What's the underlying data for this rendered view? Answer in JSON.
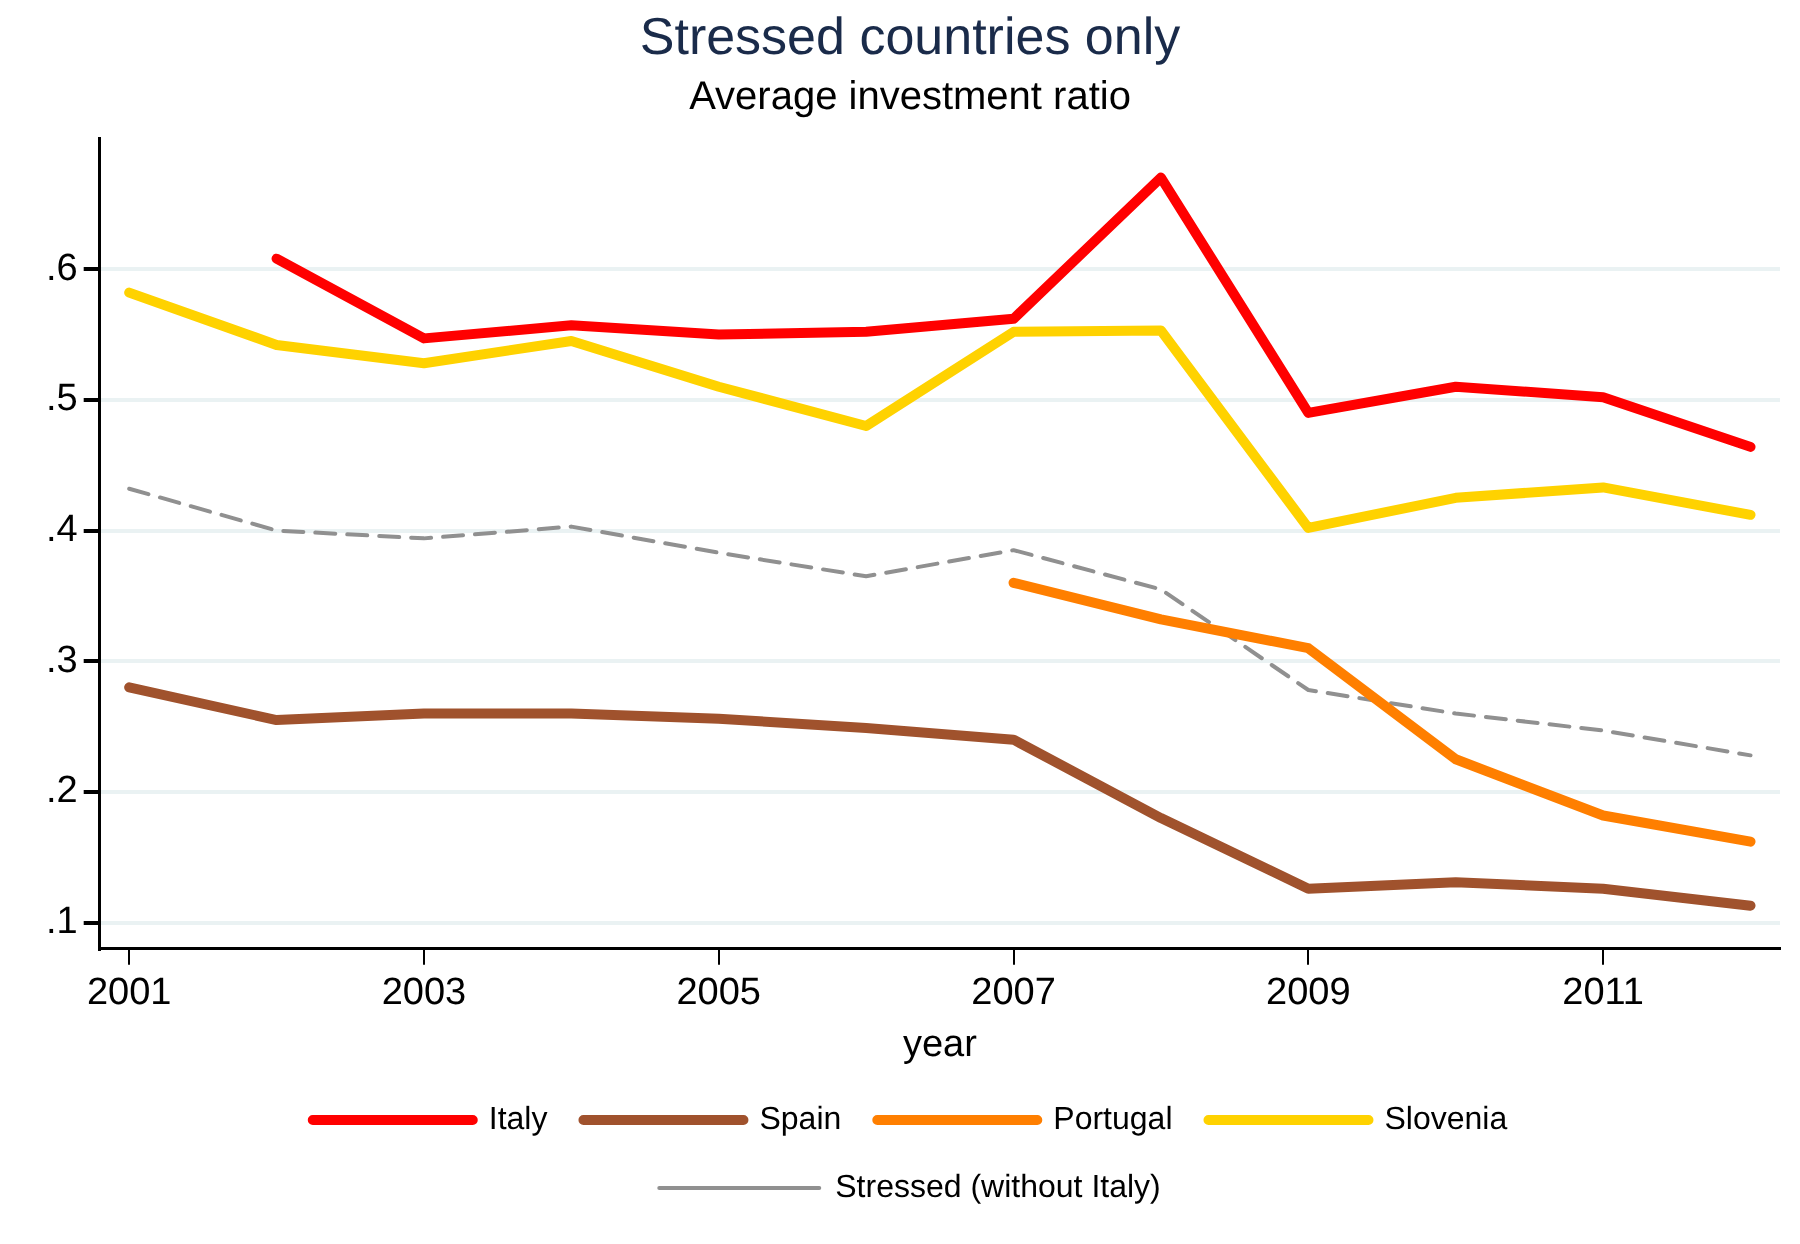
{
  "chart_data": {
    "type": "line",
    "title": "Stressed countries only",
    "subtitle": "Average investment ratio",
    "xlabel": "year",
    "x": [
      2001,
      2002,
      2003,
      2004,
      2005,
      2006,
      2007,
      2008,
      2009,
      2010,
      2011,
      2012
    ],
    "series": [
      {
        "name": "Italy",
        "color": "#ff0000",
        "values": [
          null,
          0.608,
          0.547,
          0.557,
          0.55,
          0.552,
          0.562,
          0.67,
          0.49,
          0.51,
          0.502,
          0.464
        ]
      },
      {
        "name": "Spain",
        "color": "#a0522d",
        "values": [
          0.28,
          0.255,
          0.26,
          0.26,
          0.256,
          0.249,
          0.24,
          0.18,
          0.126,
          0.131,
          0.126,
          0.113
        ]
      },
      {
        "name": "Portugal",
        "color": "#ff7f00",
        "values": [
          null,
          null,
          null,
          null,
          null,
          null,
          0.36,
          0.332,
          0.31,
          0.225,
          0.182,
          0.162
        ]
      },
      {
        "name": "Slovenia",
        "color": "#ffd200",
        "values": [
          0.582,
          0.542,
          0.528,
          0.545,
          0.51,
          0.48,
          0.552,
          0.553,
          0.402,
          0.425,
          0.433,
          0.412
        ]
      },
      {
        "name": "Stressed (without Italy)",
        "color": "#909090",
        "line_style": "dashed",
        "values": [
          0.432,
          0.4,
          0.394,
          0.403,
          0.383,
          0.365,
          0.385,
          0.355,
          0.278,
          0.26,
          0.247,
          0.228
        ]
      }
    ],
    "xlim": [
      2000.8,
      2012.2
    ],
    "xticks": [
      2001,
      2003,
      2005,
      2007,
      2009,
      2011
    ],
    "ylim": [
      0.08,
      0.7
    ],
    "yticks": [
      {
        "value": 0.1,
        "label": ".1"
      },
      {
        "value": 0.2,
        "label": ".2"
      },
      {
        "value": 0.3,
        "label": ".3"
      },
      {
        "value": 0.4,
        "label": ".4"
      },
      {
        "value": 0.5,
        "label": ".5"
      },
      {
        "value": 0.6,
        "label": ".6"
      }
    ],
    "grid": "y",
    "legend": "bottom",
    "marker": "none"
  }
}
